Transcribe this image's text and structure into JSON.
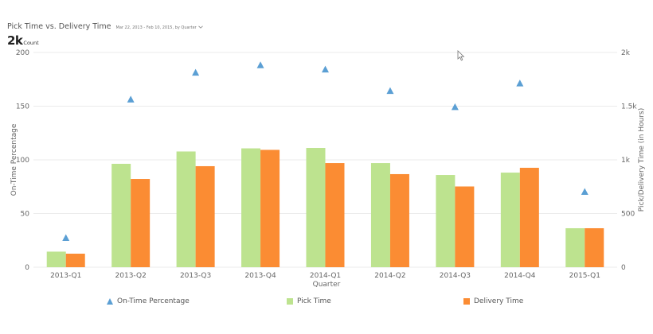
{
  "header": {
    "title": "Pick Time vs. Delivery Time",
    "subtitle": "Mar 22, 2013 - Feb 10, 2015, by Quarter",
    "subtitle_icon": "chevron-down-icon",
    "kpi_value": "2k",
    "kpi_unit": "Count"
  },
  "colors": {
    "on_time": "#5b9fd4",
    "pick_time": "#bde38f",
    "delivery_time": "#fb8c33",
    "grid": "#ebebeb"
  },
  "legend": {
    "items": [
      {
        "label": "On-Time Percentage",
        "marker": "triangle",
        "color": "#5b9fd4"
      },
      {
        "label": "Pick Time",
        "marker": "square",
        "color": "#bde38f"
      },
      {
        "label": "Delivery Time",
        "marker": "square",
        "color": "#fb8c33"
      }
    ]
  },
  "chart_data": {
    "type": "bar",
    "title": "Pick Time vs. Delivery Time",
    "subtitle": "Mar 22, 2013 - Feb 10, 2015, by Quarter",
    "xlabel": "Quarter",
    "ylabel": "On-Time Percentage",
    "y2label": "Pick/Delivery Time (in Hours)",
    "ylim": [
      0,
      200
    ],
    "y2lim": [
      0,
      2000
    ],
    "yticks": [
      "0",
      "50",
      "100",
      "150",
      "200"
    ],
    "y2ticks": [
      "0",
      "500",
      "1k",
      "1.5k",
      "2k"
    ],
    "grid": true,
    "legend_position": "bottom",
    "categories": [
      "2013-Q1",
      "2013-Q2",
      "2013-Q3",
      "2013-Q4",
      "2014-Q1",
      "2014-Q2",
      "2014-Q3",
      "2014-Q4",
      "2015-Q1"
    ],
    "series": [
      {
        "name": "On-Time Percentage",
        "type": "scatter",
        "marker": "triangle",
        "axis": "left",
        "values": [
          27,
          156,
          181,
          188,
          184,
          164,
          149,
          171,
          70
        ]
      },
      {
        "name": "Pick Time",
        "type": "bar",
        "axis": "right",
        "values": [
          145,
          963,
          1078,
          1107,
          1111,
          970,
          859,
          881,
          363
        ]
      },
      {
        "name": "Delivery Time",
        "type": "bar",
        "axis": "right",
        "values": [
          126,
          822,
          941,
          1093,
          970,
          867,
          752,
          926,
          363
        ]
      }
    ]
  }
}
